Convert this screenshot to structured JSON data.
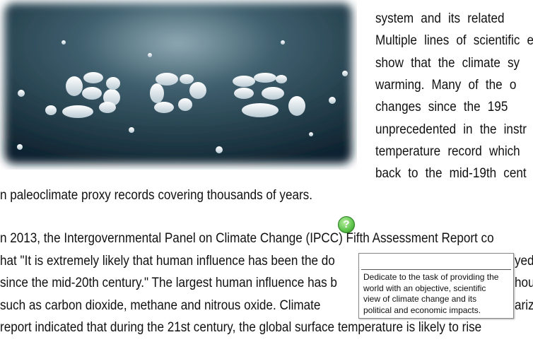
{
  "right_column": {
    "lines": [
      "system and its related",
      "Multiple lines of scientific e",
      "show that the climate sy",
      "warming. Many of the o",
      "changes since the 195",
      "unprecedented in the instr",
      "temperature record which",
      "back to the mid-19th cent"
    ]
  },
  "paragraph_1": {
    "lines": [
      "n paleoclimate proxy records covering thousands of years."
    ]
  },
  "paragraph_2": {
    "lines": [
      {
        "left": "n 2013, the Intergovernmental Panel on Climate Change (IPCC) Fifth Assessment Report co"
      },
      {
        "left": "hat \"It is extremely likely that human influence has been the do",
        "right": "yed"
      },
      {
        "left": "since the mid-20th century.\" The largest human influence has b",
        "right": "hou"
      },
      {
        "left": "such as carbon dioxide, methane and nitrous oxide. Climate",
        "right": "arize"
      },
      {
        "left": "report indicated that during the 21st century, the global surface temperature is likely to rise"
      }
    ]
  },
  "help_icon": "?",
  "tooltip": {
    "lines": [
      "Dedicate to the task of providing the",
      "world with an objective, scientific",
      "view of climate change and its",
      "political and economic impacts."
    ]
  }
}
